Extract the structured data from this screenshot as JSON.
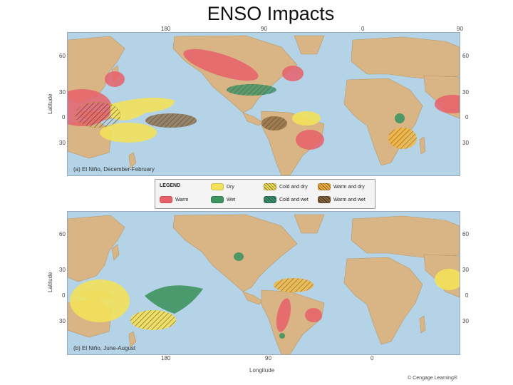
{
  "title": "ENSO Impacts",
  "colors": {
    "ocean": "#b4d3e6",
    "land": "#d9b585",
    "warm": "#e8606a",
    "dry": "#f2e15a",
    "wet": "#3f9460"
  },
  "top_map": {
    "caption": "(a) El Niño, December-February",
    "lon_labels": [
      "180",
      "90",
      "0",
      "90"
    ],
    "lat_labels": [
      "60",
      "30",
      "0",
      "30"
    ],
    "axis_label": "Latitude"
  },
  "bottom_map": {
    "caption": "(b) El Niño, June-August",
    "lon_labels": [
      "180",
      "90",
      "0"
    ],
    "lat_labels": [
      "60",
      "30",
      "0",
      "30"
    ],
    "axis_label": "Latitude",
    "x_axis_label": "Longitude"
  },
  "legend": {
    "heading": "LEGEND",
    "items": [
      {
        "label": "Warm"
      },
      {
        "label": "Dry"
      },
      {
        "label": "Wet"
      },
      {
        "label": "Cold and dry"
      },
      {
        "label": "Cold and wet"
      },
      {
        "label": "Warm and dry"
      },
      {
        "label": "Warm and wet"
      }
    ]
  },
  "credit": "© Cengage Learning®"
}
